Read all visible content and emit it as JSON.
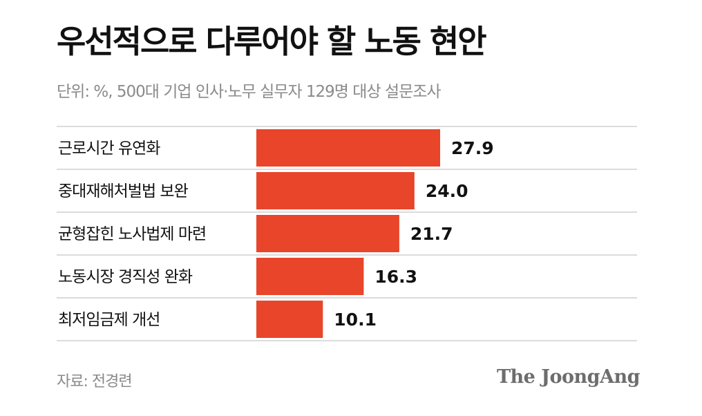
{
  "header": {
    "title": "우선적으로 다루어야 할 노동 현안",
    "subtitle": "단위: %, 500대 기업 인사·노무 실무자 129명 대상 설문조사"
  },
  "footer": {
    "source": "자료: 전경련",
    "brand": "The JoongAng"
  },
  "chart_data": {
    "type": "bar",
    "orientation": "horizontal",
    "categories": [
      "근로시간 유연화",
      "중대재해처벌법 보완",
      "균형잡힌 노사법제 마련",
      "노동시장 경직성  완화",
      "최저임금제 개선"
    ],
    "values": [
      27.9,
      24.0,
      21.7,
      16.3,
      10.1
    ],
    "value_labels": [
      "27.9",
      "24.0",
      "21.7",
      "16.3",
      "10.1"
    ],
    "unit": "%",
    "bar_color": "#e8452a",
    "divider_color": "#cfcfcf",
    "grid": false,
    "legend": "none"
  }
}
